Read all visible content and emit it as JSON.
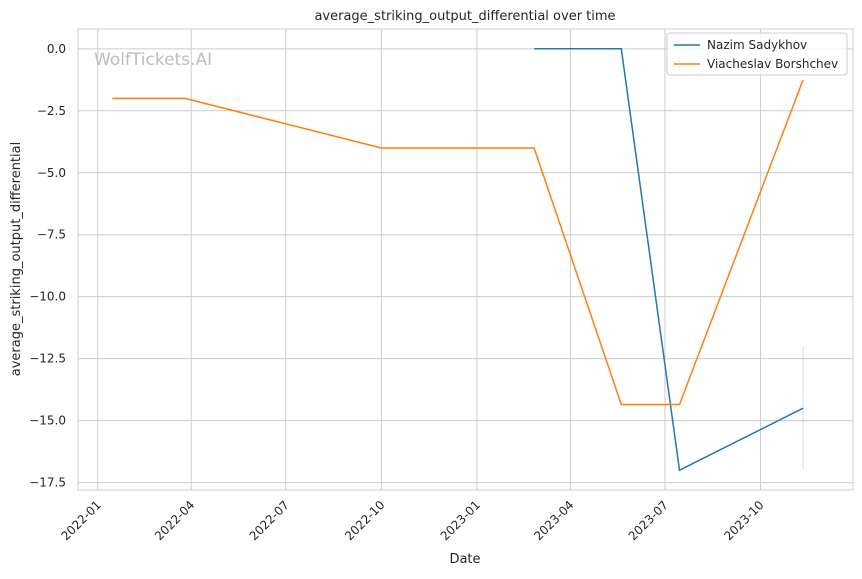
{
  "watermark": "WolfTickets.AI",
  "chart_data": {
    "type": "line",
    "title": "average_striking_output_differential over time",
    "xlabel": "Date",
    "ylabel": "average_striking_output_differential",
    "x_axis_type": "date",
    "xlim": [
      "2021-12-13",
      "2023-12-29"
    ],
    "ylim": [
      -17.8,
      0.8
    ],
    "xticks": [
      "2022-01",
      "2022-04",
      "2022-07",
      "2022-10",
      "2023-01",
      "2023-04",
      "2023-07",
      "2023-10"
    ],
    "yticks": [
      0.0,
      -2.5,
      -5.0,
      -7.5,
      -10.0,
      -12.5,
      -15.0,
      -17.5
    ],
    "ytick_labels": [
      "0.0",
      "−2.5",
      "−5.0",
      "−7.5",
      "−10.0",
      "−12.5",
      "−15.0",
      "−17.5"
    ],
    "grid": true,
    "legend_position": "top-right",
    "series": [
      {
        "name": "Nazim Sadykhov",
        "color": "#1f77b4",
        "x": [
          "2023-02-25",
          "2023-05-20",
          "2023-07-15",
          "2023-11-11"
        ],
        "y": [
          0.0,
          0.0,
          -17.0,
          -14.5
        ],
        "band": {
          "x": "2023-11-11",
          "y_low": -17.0,
          "y_high": -12.0
        }
      },
      {
        "name": "Viacheslav Borshchev",
        "color": "#ff7f0e",
        "x": [
          "2022-01-15",
          "2022-03-26",
          "2022-10-01",
          "2023-02-25",
          "2023-05-20",
          "2023-07-15",
          "2023-11-11"
        ],
        "y": [
          -2.0,
          -2.0,
          -4.0,
          -4.0,
          -14.35,
          -14.35,
          -1.25
        ]
      }
    ]
  }
}
